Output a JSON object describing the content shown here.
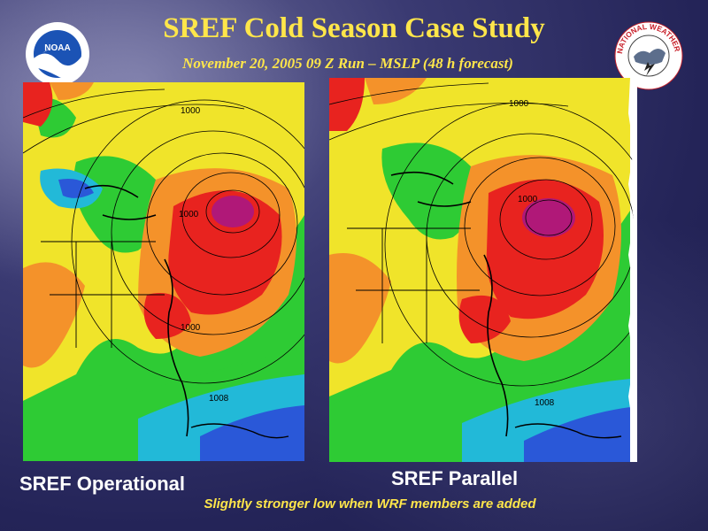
{
  "slide": {
    "title": "SREF Cold Season Case Study",
    "subtitle": "November 20, 2005 09 Z Run – MSLP (48 h forecast)",
    "note": "Slightly stronger low when WRF members are added"
  },
  "logos": {
    "left": {
      "name": "noaa-logo",
      "text": "NOAA"
    },
    "right": {
      "name": "nws-logo",
      "text": "NATIONAL WEATHER SERVICE"
    }
  },
  "panels": {
    "left": {
      "caption": "SREF Operational",
      "contour_labels": [
        "1000",
        "1000",
        "1000",
        "1008"
      ]
    },
    "right": {
      "caption": "SREF Parallel",
      "contour_labels": [
        "1000",
        "1000",
        "1008"
      ]
    }
  },
  "colors": {
    "title": "#ffe64a",
    "caption": "#ffffff",
    "field_red": "#e8231f",
    "field_magenta": "#b01878",
    "field_orange": "#f4922a",
    "field_yellow": "#f0e42a",
    "field_green": "#2ecb34",
    "field_cyan": "#22b9d8",
    "field_blue": "#2a58d8"
  }
}
